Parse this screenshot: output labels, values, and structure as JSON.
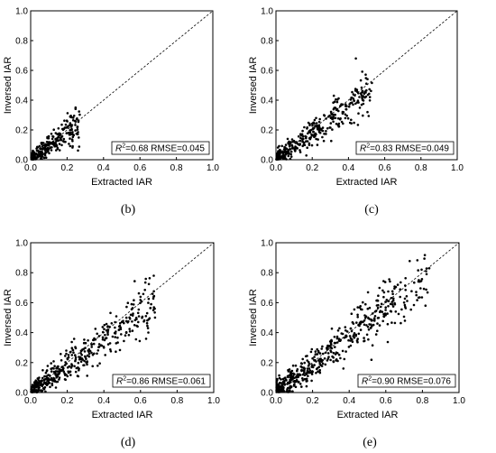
{
  "chart_data": [
    {
      "type": "scatter",
      "panel_label": "(b)",
      "xlabel": "Extracted IAR",
      "ylabel": "Inversed IAR",
      "xlim": [
        0,
        1.0
      ],
      "ylim": [
        0,
        1.0
      ],
      "xticks": [
        "0.0",
        "0.2",
        "0.4",
        "0.6",
        "0.8",
        "1.0"
      ],
      "yticks": [
        "0.0",
        "0.2",
        "0.4",
        "0.6",
        "0.8",
        "1.0"
      ],
      "reference_line": "1:1 dashed",
      "stats": {
        "r2_label": "R",
        "r2_value": "=0.68",
        "rmse": "RMSE=0.045"
      },
      "point_cloud": {
        "count": 260,
        "x_max": 0.27,
        "slope": 0.95,
        "spread": 0.045
      }
    },
    {
      "type": "scatter",
      "panel_label": "(c)",
      "xlabel": "Extracted IAR",
      "ylabel": "Inversed IAR",
      "xlim": [
        0,
        1.0
      ],
      "ylim": [
        0,
        1.0
      ],
      "xticks": [
        "0.0",
        "0.2",
        "0.4",
        "0.6",
        "0.8",
        "1.0"
      ],
      "yticks": [
        "0.0",
        "0.2",
        "0.4",
        "0.6",
        "0.8",
        "1.0"
      ],
      "reference_line": "1:1 dashed",
      "stats": {
        "r2_label": "R",
        "r2_value": "=0.83",
        "rmse": "RMSE=0.049"
      },
      "point_cloud": {
        "count": 380,
        "x_max": 0.53,
        "slope": 0.9,
        "spread": 0.05
      }
    },
    {
      "type": "scatter",
      "panel_label": "(d)",
      "xlabel": "Extracted IAR",
      "ylabel": "Inversed IAR",
      "xlim": [
        0,
        1.0
      ],
      "ylim": [
        0,
        1.0
      ],
      "xticks": [
        "0.0",
        "0.2",
        "0.4",
        "0.6",
        "0.8",
        "1.0"
      ],
      "yticks": [
        "0.0",
        "0.2",
        "0.4",
        "0.6",
        "0.8",
        "1.0"
      ],
      "reference_line": "1:1 dashed",
      "stats": {
        "r2_label": "R",
        "r2_value": "=0.86",
        "rmse": "RMSE=0.061"
      },
      "point_cloud": {
        "count": 450,
        "x_max": 0.68,
        "slope": 0.88,
        "spread": 0.06
      }
    },
    {
      "type": "scatter",
      "panel_label": "(e)",
      "xlabel": "Extracted IAR",
      "ylabel": "Inversed IAR",
      "xlim": [
        0,
        1.0
      ],
      "ylim": [
        0,
        1.0
      ],
      "xticks": [
        "0.0",
        "0.2",
        "0.4",
        "0.6",
        "0.8",
        "1.0"
      ],
      "yticks": [
        "0.0",
        "0.2",
        "0.4",
        "0.6",
        "0.8",
        "1.0"
      ],
      "reference_line": "1:1 dashed",
      "stats": {
        "r2_label": "R",
        "r2_value": "=0.90",
        "rmse": "RMSE=0.076"
      },
      "point_cloud": {
        "count": 520,
        "x_max": 0.84,
        "slope": 0.93,
        "spread": 0.075
      }
    }
  ]
}
